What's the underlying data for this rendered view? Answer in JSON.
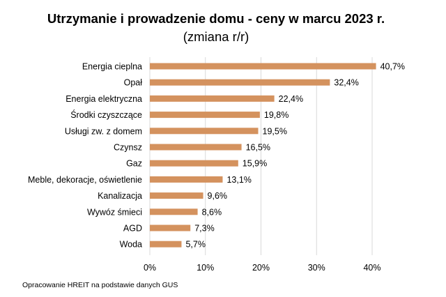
{
  "chart_data": {
    "type": "bar",
    "orientation": "horizontal",
    "title": "Utrzymanie i prowadzenie domu - ceny w marcu 2023 r.",
    "subtitle": "(zmiana r/r)",
    "categories": [
      "Energia cieplna",
      "Opał",
      "Energia elektryczna",
      "Środki czyszczące",
      "Usługi zw. z domem",
      "Czynsz",
      "Gaz",
      "Meble, dekoracje, oświetlenie",
      "Kanalizacja",
      "Wywóz śmieci",
      "AGD",
      "Woda"
    ],
    "values": [
      40.7,
      32.4,
      22.4,
      19.8,
      19.5,
      16.5,
      15.9,
      13.1,
      9.6,
      8.6,
      7.3,
      5.7
    ],
    "value_labels": [
      "40,7%",
      "32,4%",
      "22,4%",
      "19,8%",
      "19,5%",
      "16,5%",
      "15,9%",
      "13,1%",
      "9,6%",
      "8,6%",
      "7,3%",
      "5,7%"
    ],
    "xlim": [
      0,
      40
    ],
    "x_ticks": [
      0,
      10,
      20,
      30,
      40
    ],
    "x_tick_labels": [
      "0%",
      "10%",
      "20%",
      "30%",
      "40%"
    ],
    "xlabel": "",
    "ylabel": "",
    "grid": true,
    "bar_color": "#d4925e",
    "source": "Opracowanie HREIT na podstawie danych GUS"
  }
}
